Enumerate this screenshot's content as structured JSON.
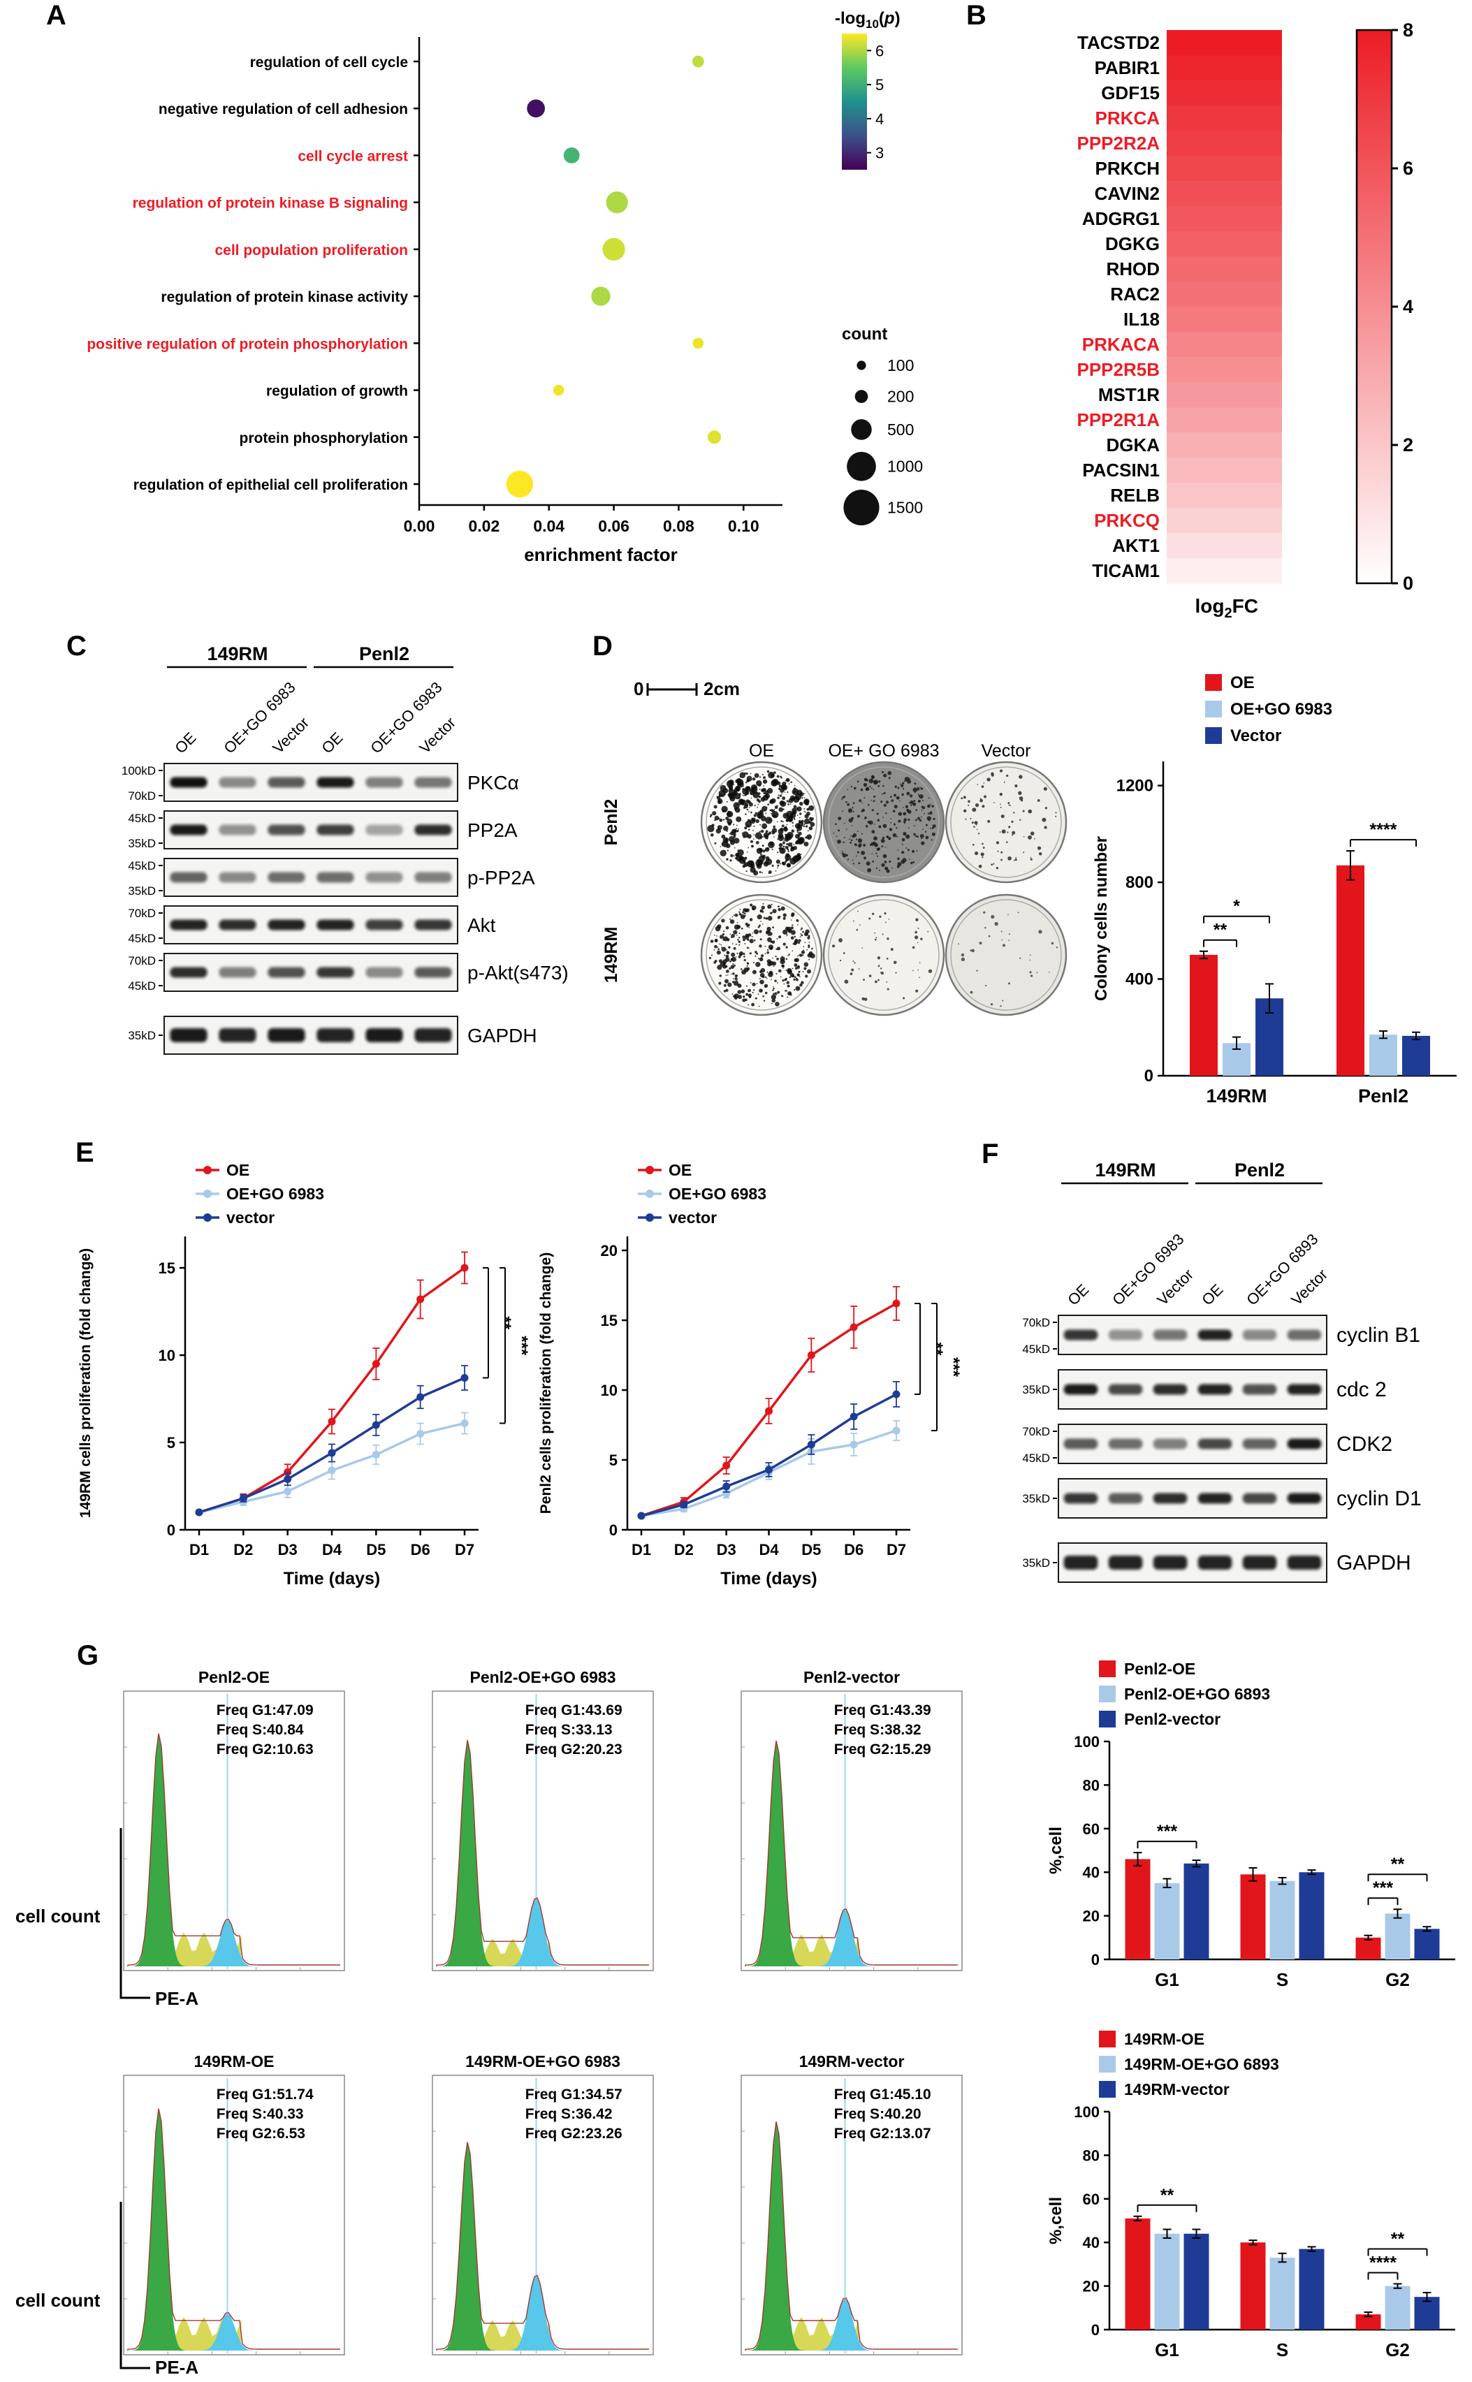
{
  "figure": {
    "panel_labels": {
      "A": "A",
      "B": "B",
      "C": "C",
      "D": "D",
      "E": "E",
      "F": "F",
      "G": "G"
    }
  },
  "colors": {
    "red": "#e2151b",
    "light_blue": "#a9c9e8",
    "dark_blue": "#1e3c96",
    "gene_red": "#ed1c24"
  },
  "panelA": {
    "xlabel": "enrichment factor",
    "xlim": [
      0,
      0.112
    ],
    "xticks": [
      {
        "v": 0,
        "t": "0.00"
      },
      {
        "v": 0.02,
        "t": "0.02"
      },
      {
        "v": 0.04,
        "t": "0.04"
      },
      {
        "v": 0.06,
        "t": "0.06"
      },
      {
        "v": 0.08,
        "t": "0.08"
      },
      {
        "v": 0.1,
        "t": "0.10"
      }
    ],
    "colorbar": {
      "title_parts": {
        "prefix": "-log",
        "sub": "10",
        "open": "(",
        "p": "p",
        "close": ")"
      },
      "ticks": [
        6,
        5,
        4,
        3
      ],
      "range": [
        2.5,
        6.5
      ]
    },
    "count_legend": {
      "title": "count",
      "items": [
        100,
        200,
        500,
        1000,
        1500
      ]
    },
    "terms": [
      {
        "label": "regulation of cell cycle",
        "red": false,
        "x": 0.086,
        "count": 160,
        "logp": 6.1
      },
      {
        "label": "negative regulation of cell adhesion",
        "red": false,
        "x": 0.036,
        "count": 380,
        "logp": 2.7
      },
      {
        "label": "cell cycle arrest",
        "red": true,
        "x": 0.047,
        "count": 300,
        "logp": 5.1
      },
      {
        "label": "regulation of protein kinase B signaling",
        "red": true,
        "x": 0.061,
        "count": 560,
        "logp": 6.0
      },
      {
        "label": "cell population proliferation",
        "red": true,
        "x": 0.06,
        "count": 600,
        "logp": 6.2
      },
      {
        "label": "regulation of protein kinase activity",
        "red": false,
        "x": 0.056,
        "count": 430,
        "logp": 6.0
      },
      {
        "label": "positive regulation of protein phosphorylation",
        "red": true,
        "x": 0.086,
        "count": 140,
        "logp": 6.4
      },
      {
        "label": "regulation of growth",
        "red": false,
        "x": 0.043,
        "count": 140,
        "logp": 6.4
      },
      {
        "label": "protein phosphorylation",
        "red": false,
        "x": 0.091,
        "count": 210,
        "logp": 6.3
      },
      {
        "label": "regulation of epithelial cell proliferation",
        "red": false,
        "x": 0.031,
        "count": 850,
        "logp": 6.5
      }
    ]
  },
  "panelB": {
    "xlabel_parts": {
      "prefix": "log",
      "sub": "2",
      "rest": "FC"
    },
    "colorbar": {
      "ticks": [
        8,
        6,
        4,
        2,
        0
      ],
      "range": [
        0,
        8
      ]
    },
    "genes": [
      {
        "name": "TACSTD2",
        "red": false,
        "log2fc": 8.0
      },
      {
        "name": "PABIR1",
        "red": false,
        "log2fc": 7.7
      },
      {
        "name": "GDF15",
        "red": false,
        "log2fc": 7.4
      },
      {
        "name": "PRKCA",
        "red": true,
        "log2fc": 7.1
      },
      {
        "name": "PPP2R2A",
        "red": true,
        "log2fc": 6.8
      },
      {
        "name": "PRKCH",
        "red": false,
        "log2fc": 6.5
      },
      {
        "name": "CAVIN2",
        "red": false,
        "log2fc": 6.2
      },
      {
        "name": "ADGRG1",
        "red": false,
        "log2fc": 5.9
      },
      {
        "name": "DGKG",
        "red": false,
        "log2fc": 5.6
      },
      {
        "name": "RHOD",
        "red": false,
        "log2fc": 5.3
      },
      {
        "name": "RAC2",
        "red": false,
        "log2fc": 5.0
      },
      {
        "name": "IL18",
        "red": false,
        "log2fc": 4.7
      },
      {
        "name": "PRKACA",
        "red": true,
        "log2fc": 4.3
      },
      {
        "name": "PPP2R5B",
        "red": true,
        "log2fc": 4.0
      },
      {
        "name": "MST1R",
        "red": false,
        "log2fc": 3.6
      },
      {
        "name": "PPP2R1A",
        "red": true,
        "log2fc": 3.2
      },
      {
        "name": "DGKA",
        "red": false,
        "log2fc": 2.8
      },
      {
        "name": "PACSIN1",
        "red": false,
        "log2fc": 2.4
      },
      {
        "name": "RELB",
        "red": false,
        "log2fc": 2.0
      },
      {
        "name": "PRKCQ",
        "red": true,
        "log2fc": 1.6
      },
      {
        "name": "AKT1",
        "red": false,
        "log2fc": 1.1
      },
      {
        "name": "TICAM1",
        "red": false,
        "log2fc": 0.6
      }
    ]
  },
  "panelC": {
    "groups": [
      "149RM",
      "Penl2"
    ],
    "lanes": [
      "OE",
      "OE+GO 6983",
      "Vector",
      "OE",
      "OE+GO 6983",
      "Vector"
    ],
    "rows": [
      {
        "protein": "PKCα",
        "mw": [
          "100kD",
          "70kD"
        ],
        "bands": [
          1.0,
          0.35,
          0.6,
          0.95,
          0.4,
          0.45
        ]
      },
      {
        "protein": "PP2A",
        "mw": [
          "45kD",
          "35kD"
        ],
        "bands": [
          0.95,
          0.3,
          0.65,
          0.75,
          0.2,
          0.85
        ]
      },
      {
        "protein": "p-PP2A",
        "mw": [
          "45kD",
          "35kD"
        ],
        "bands": [
          0.55,
          0.35,
          0.5,
          0.5,
          0.3,
          0.4
        ]
      },
      {
        "protein": "Akt",
        "mw": [
          "70kD",
          "45kD"
        ],
        "bands": [
          0.9,
          0.85,
          0.9,
          0.9,
          0.75,
          0.8
        ]
      },
      {
        "protein": "p-Akt(s473)",
        "mw": [
          "70kD",
          "45kD"
        ],
        "bands": [
          0.85,
          0.4,
          0.65,
          0.8,
          0.35,
          0.6
        ]
      },
      {
        "protein": "GAPDH",
        "mw": [
          "35kD"
        ],
        "bands": [
          0.95,
          0.9,
          0.95,
          0.9,
          0.95,
          0.9
        ]
      }
    ]
  },
  "panelD": {
    "scale_bar": {
      "zero": "0",
      "len": "2cm"
    },
    "col_labels": [
      "OE",
      "OE+ GO 6983",
      "Vector"
    ],
    "row_labels": [
      "Penl2",
      "149RM"
    ],
    "dishes": [
      {
        "bg": "#fcfbf8",
        "n": 520,
        "max_r": 4.5,
        "ink": "#0d0d0d"
      },
      {
        "bg": "#8f8f8d",
        "n": 260,
        "max_r": 2.6,
        "ink": "#1c1c1c"
      },
      {
        "bg": "#efede8",
        "n": 90,
        "max_r": 2.2,
        "ink": "#2a2a2a"
      },
      {
        "bg": "#faf9f5",
        "n": 400,
        "max_r": 3.0,
        "ink": "#111111"
      },
      {
        "bg": "#f3f1ec",
        "n": 60,
        "max_r": 2.2,
        "ink": "#333333"
      },
      {
        "bg": "#e8e6e0",
        "n": 35,
        "max_r": 2.0,
        "ink": "#444444"
      }
    ],
    "bar": {
      "type": "bar",
      "ylabel": "Colony cells number",
      "ylim": [
        0,
        1300
      ],
      "yticks": [
        0,
        400,
        800,
        1200
      ],
      "categories": [
        "149RM",
        "Penl2"
      ],
      "series": [
        {
          "name": "OE",
          "color": "red",
          "values": [
            500,
            870
          ],
          "errors": [
            15,
            60
          ]
        },
        {
          "name": "OE+GO 6983",
          "color": "light_blue",
          "values": [
            135,
            170
          ],
          "errors": [
            25,
            15
          ]
        },
        {
          "name": "Vector",
          "color": "dark_blue",
          "values": [
            320,
            165
          ],
          "errors": [
            60,
            15
          ]
        }
      ],
      "sig": [
        {
          "cat": 0,
          "from": 0,
          "to": 1,
          "label": "**",
          "lvl": 0
        },
        {
          "cat": 0,
          "from": 0,
          "to": 2,
          "label": "*",
          "lvl": 1
        },
        {
          "cat": 1,
          "from": 0,
          "to": 2,
          "label": "****",
          "lvl": 0
        }
      ]
    }
  },
  "panelE": {
    "charts": [
      {
        "type": "line",
        "ylabel": "149RM cells proliferation (fold change)",
        "xlabel": "Time (days)",
        "xticks": [
          "D1",
          "D2",
          "D3",
          "D4",
          "D5",
          "D6",
          "D7"
        ],
        "ylim": [
          0,
          16.8
        ],
        "yticks": [
          0,
          5,
          10,
          15
        ],
        "series": [
          {
            "name": "OE",
            "color": "red",
            "values": [
              1,
              1.8,
              3.3,
              6.2,
              9.5,
              13.2,
              15.0
            ],
            "errors": [
              0.1,
              0.25,
              0.45,
              0.7,
              0.9,
              1.1,
              0.9
            ]
          },
          {
            "name": "OE+GO 6983",
            "color": "light_blue",
            "values": [
              1,
              1.6,
              2.2,
              3.4,
              4.3,
              5.5,
              6.1
            ],
            "errors": [
              0.1,
              0.2,
              0.35,
              0.5,
              0.55,
              0.6,
              0.6
            ]
          },
          {
            "name": "vector",
            "color": "dark_blue",
            "values": [
              1,
              1.8,
              2.9,
              4.4,
              6.0,
              7.6,
              8.7
            ],
            "errors": [
              0.1,
              0.2,
              0.35,
              0.5,
              0.6,
              0.65,
              0.7
            ]
          }
        ],
        "sig": [
          {
            "from": 0,
            "to": 2,
            "label": "**"
          },
          {
            "from": 0,
            "to": 1,
            "label": "***"
          }
        ]
      },
      {
        "type": "line",
        "ylabel": "Penl2 cells proliferation (fold change)",
        "xlabel": "Time (days)",
        "xticks": [
          "D1",
          "D2",
          "D3",
          "D4",
          "D5",
          "D6",
          "D7"
        ],
        "ylim": [
          0,
          21
        ],
        "yticks": [
          0,
          5,
          10,
          15,
          20
        ],
        "series": [
          {
            "name": "OE",
            "color": "red",
            "values": [
              1,
              2,
              4.6,
              8.5,
              12.5,
              14.5,
              16.2
            ],
            "errors": [
              0.1,
              0.3,
              0.6,
              0.9,
              1.2,
              1.5,
              1.2
            ]
          },
          {
            "name": "OE+GO 6983",
            "color": "light_blue",
            "values": [
              1,
              1.5,
              2.6,
              4.1,
              5.6,
              6.1,
              7.1
            ],
            "errors": [
              0.1,
              0.2,
              0.3,
              0.5,
              0.9,
              0.8,
              0.7
            ]
          },
          {
            "name": "vector",
            "color": "dark_blue",
            "values": [
              1,
              1.8,
              3.1,
              4.3,
              6.1,
              8.1,
              9.7
            ],
            "errors": [
              0.1,
              0.2,
              0.4,
              0.5,
              0.7,
              0.9,
              0.9
            ]
          }
        ],
        "sig": [
          {
            "from": 0,
            "to": 2,
            "label": "**"
          },
          {
            "from": 0,
            "to": 1,
            "label": "***"
          }
        ]
      }
    ]
  },
  "panelF": {
    "groups": [
      "149RM",
      "Penl2"
    ],
    "lanes": [
      "OE",
      "OE+GO 6983",
      "Vector",
      "OE",
      "OE+GO 6893",
      "Vector"
    ],
    "rows": [
      {
        "protein": "cyclin B1",
        "mw": [
          "70kD",
          "45kD"
        ],
        "bands": [
          0.8,
          0.3,
          0.45,
          0.9,
          0.35,
          0.5
        ]
      },
      {
        "protein": "cdc 2",
        "mw": [
          "35kD"
        ],
        "bands": [
          0.95,
          0.7,
          0.85,
          0.9,
          0.65,
          0.9
        ]
      },
      {
        "protein": "CDK2",
        "mw": [
          "70kD",
          "45kD"
        ],
        "bands": [
          0.6,
          0.5,
          0.4,
          0.7,
          0.55,
          0.95
        ]
      },
      {
        "protein": "cyclin D1",
        "mw": [
          "35kD"
        ],
        "bands": [
          0.8,
          0.6,
          0.85,
          0.9,
          0.7,
          0.95
        ]
      },
      {
        "protein": "GAPDH",
        "mw": [
          "35kD"
        ],
        "bands": [
          0.9,
          0.9,
          0.9,
          0.9,
          0.9,
          0.9
        ]
      }
    ]
  },
  "panelG": {
    "axis": {
      "y": "cell count",
      "x": "PE-A"
    },
    "flow": [
      {
        "title": "Penl2-OE",
        "freq": [
          "Freq G1:47.09",
          "Freq S:40.84",
          "Freq G2:10.63"
        ]
      },
      {
        "title": "Penl2-OE+GO 6983",
        "freq": [
          "Freq G1:43.69",
          "Freq S:33.13",
          "Freq G2:20.23"
        ]
      },
      {
        "title": "Penl2-vector",
        "freq": [
          "Freq G1:43.39",
          "Freq S:38.32",
          "Freq G2:15.29"
        ]
      },
      {
        "title": "149RM-OE",
        "freq": [
          "Freq G1:51.74",
          "Freq S:40.33",
          "Freq G2:6.53"
        ]
      },
      {
        "title": "149RM-OE+GO 6983",
        "freq": [
          "Freq G1:34.57",
          "Freq S:36.42",
          "Freq G2:23.26"
        ]
      },
      {
        "title": "149RM-vector",
        "freq": [
          "Freq G1:45.10",
          "Freq S:40.20",
          "Freq G2:13.07"
        ]
      }
    ],
    "bars": [
      {
        "type": "bar",
        "ylabel": "%,cell",
        "ylim": [
          0,
          100
        ],
        "yticks": [
          0,
          20,
          40,
          60,
          80,
          100
        ],
        "categories": [
          "G1",
          "S",
          "G2"
        ],
        "series": [
          {
            "name": "Penl2-OE",
            "color": "red",
            "values": [
              46,
              39,
              10
            ],
            "errors": [
              3,
              3,
              1
            ]
          },
          {
            "name": "Penl2-OE+GO 6893",
            "color": "light_blue",
            "values": [
              35,
              36,
              21
            ],
            "errors": [
              2,
              1.5,
              2
            ]
          },
          {
            "name": "Penl2-vector",
            "color": "dark_blue",
            "values": [
              44,
              40,
              14
            ],
            "errors": [
              1.5,
              1,
              1
            ]
          }
        ],
        "sig": [
          {
            "cat": 0,
            "from": 0,
            "to": 2,
            "label": "***",
            "lvl": 0
          },
          {
            "cat": 2,
            "from": 0,
            "to": 1,
            "label": "***",
            "lvl": 0
          },
          {
            "cat": 2,
            "from": 0,
            "to": 2,
            "label": "**",
            "lvl": 1
          }
        ]
      },
      {
        "type": "bar",
        "ylabel": "%,cell",
        "ylim": [
          0,
          100
        ],
        "yticks": [
          0,
          20,
          40,
          60,
          80,
          100
        ],
        "categories": [
          "G1",
          "S",
          "G2"
        ],
        "series": [
          {
            "name": "149RM-OE",
            "color": "red",
            "values": [
              51,
              40,
              7
            ],
            "errors": [
              1,
              1,
              1
            ]
          },
          {
            "name": "149RM-OE+GO 6893",
            "color": "light_blue",
            "values": [
              44,
              33,
              20
            ],
            "errors": [
              2,
              2,
              1
            ]
          },
          {
            "name": "149RM-vector",
            "color": "dark_blue",
            "values": [
              44,
              37,
              15
            ],
            "errors": [
              2,
              1,
              2
            ]
          }
        ],
        "sig": [
          {
            "cat": 0,
            "from": 0,
            "to": 2,
            "label": "**",
            "lvl": 0
          },
          {
            "cat": 2,
            "from": 0,
            "to": 1,
            "label": "****",
            "lvl": 0
          },
          {
            "cat": 2,
            "from": 0,
            "to": 2,
            "label": "**",
            "lvl": 1
          }
        ]
      }
    ]
  }
}
